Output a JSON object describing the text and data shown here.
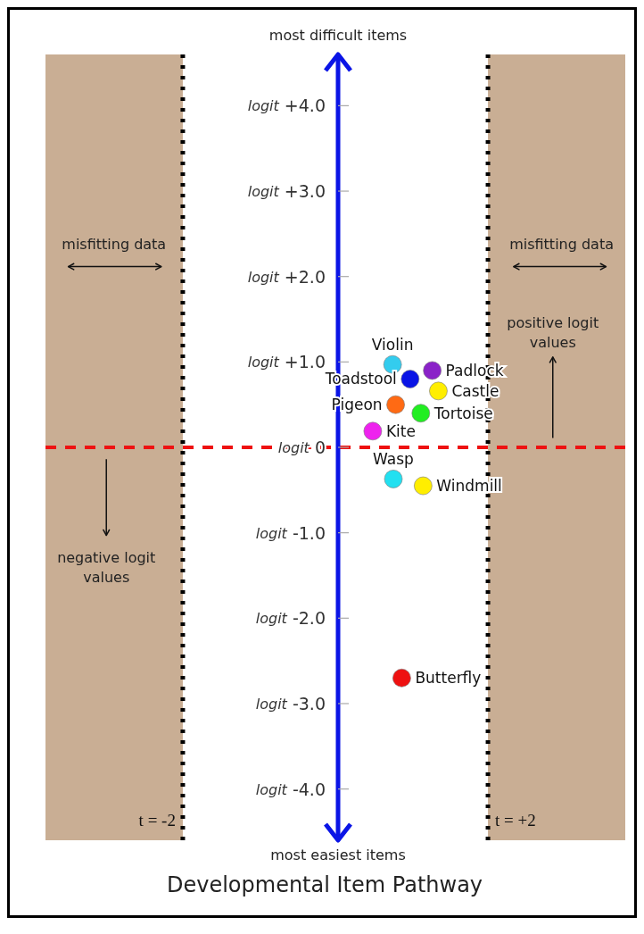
{
  "chart_data": {
    "type": "scatter",
    "title": "Developmental Item Pathway",
    "xlim": [
      -3.8,
      3.8
    ],
    "ylim": [
      -4.6,
      4.6
    ],
    "yticks": [
      {
        "value": 4,
        "label": "logit +4.0"
      },
      {
        "value": 3,
        "label": "logit +3.0"
      },
      {
        "value": 2,
        "label": "logit +2.0"
      },
      {
        "value": 1,
        "label": "logit +1.0"
      },
      {
        "value": 0,
        "label": "logit 0"
      },
      {
        "value": -1,
        "label": "logit -1.0"
      },
      {
        "value": -2,
        "label": "logit -2.0"
      },
      {
        "value": -3,
        "label": "logit -3.0"
      },
      {
        "value": -4,
        "label": "logit -4.0"
      }
    ],
    "tick_labels": "y",
    "marker": "circle",
    "series": [
      {
        "name": "Violin",
        "color": "#33ccee",
        "x": [
          0.75
        ],
        "values": [
          0.97
        ]
      },
      {
        "name": "Toadstool",
        "color": "#0a14e6",
        "x": [
          0.98
        ],
        "values": [
          0.8
        ]
      },
      {
        "name": "Padlock",
        "color": "#8a22c8",
        "x": [
          1.27
        ],
        "values": [
          0.9
        ]
      },
      {
        "name": "Castle",
        "color": "#ffee00",
        "x": [
          1.35
        ],
        "values": [
          0.66
        ]
      },
      {
        "name": "Pigeon",
        "color": "#ff6a14",
        "x": [
          0.79
        ],
        "values": [
          0.5
        ]
      },
      {
        "name": "Tortoise",
        "color": "#22ee22",
        "x": [
          1.12
        ],
        "values": [
          0.4
        ]
      },
      {
        "name": "Kite",
        "color": "#ee22ee",
        "x": [
          0.49
        ],
        "values": [
          0.19
        ]
      },
      {
        "name": "Wasp",
        "color": "#22e0f0",
        "x": [
          0.76
        ],
        "values": [
          -0.37
        ]
      },
      {
        "name": "Windmill",
        "color": "#ffee00",
        "x": [
          1.15
        ],
        "values": [
          -0.45
        ]
      },
      {
        "name": "Butterfly",
        "color": "#ee1111",
        "x": [
          0.87
        ],
        "values": [
          -2.7
        ]
      }
    ],
    "bands": [
      {
        "axis": "x",
        "from": -3.8,
        "to": -2,
        "color": "#c9ae94"
      },
      {
        "axis": "x",
        "from": 2,
        "to": 3.8,
        "color": "#c9ae94"
      }
    ],
    "ref_lines": [
      {
        "axis": "x",
        "value": -2,
        "label": "t = -2",
        "color": "#000000",
        "line_style": "dotted"
      },
      {
        "axis": "x",
        "value": 2,
        "label": "t = +2",
        "color": "#000000",
        "line_style": "dotted"
      },
      {
        "axis": "y",
        "value": 0,
        "color": "#ee1111",
        "line_style": "dashed"
      }
    ],
    "annotations": [
      "most difficult items",
      "most easiest items",
      "misfitting data",
      "misfitting data",
      "negative logit values",
      "positive logit values"
    ]
  }
}
